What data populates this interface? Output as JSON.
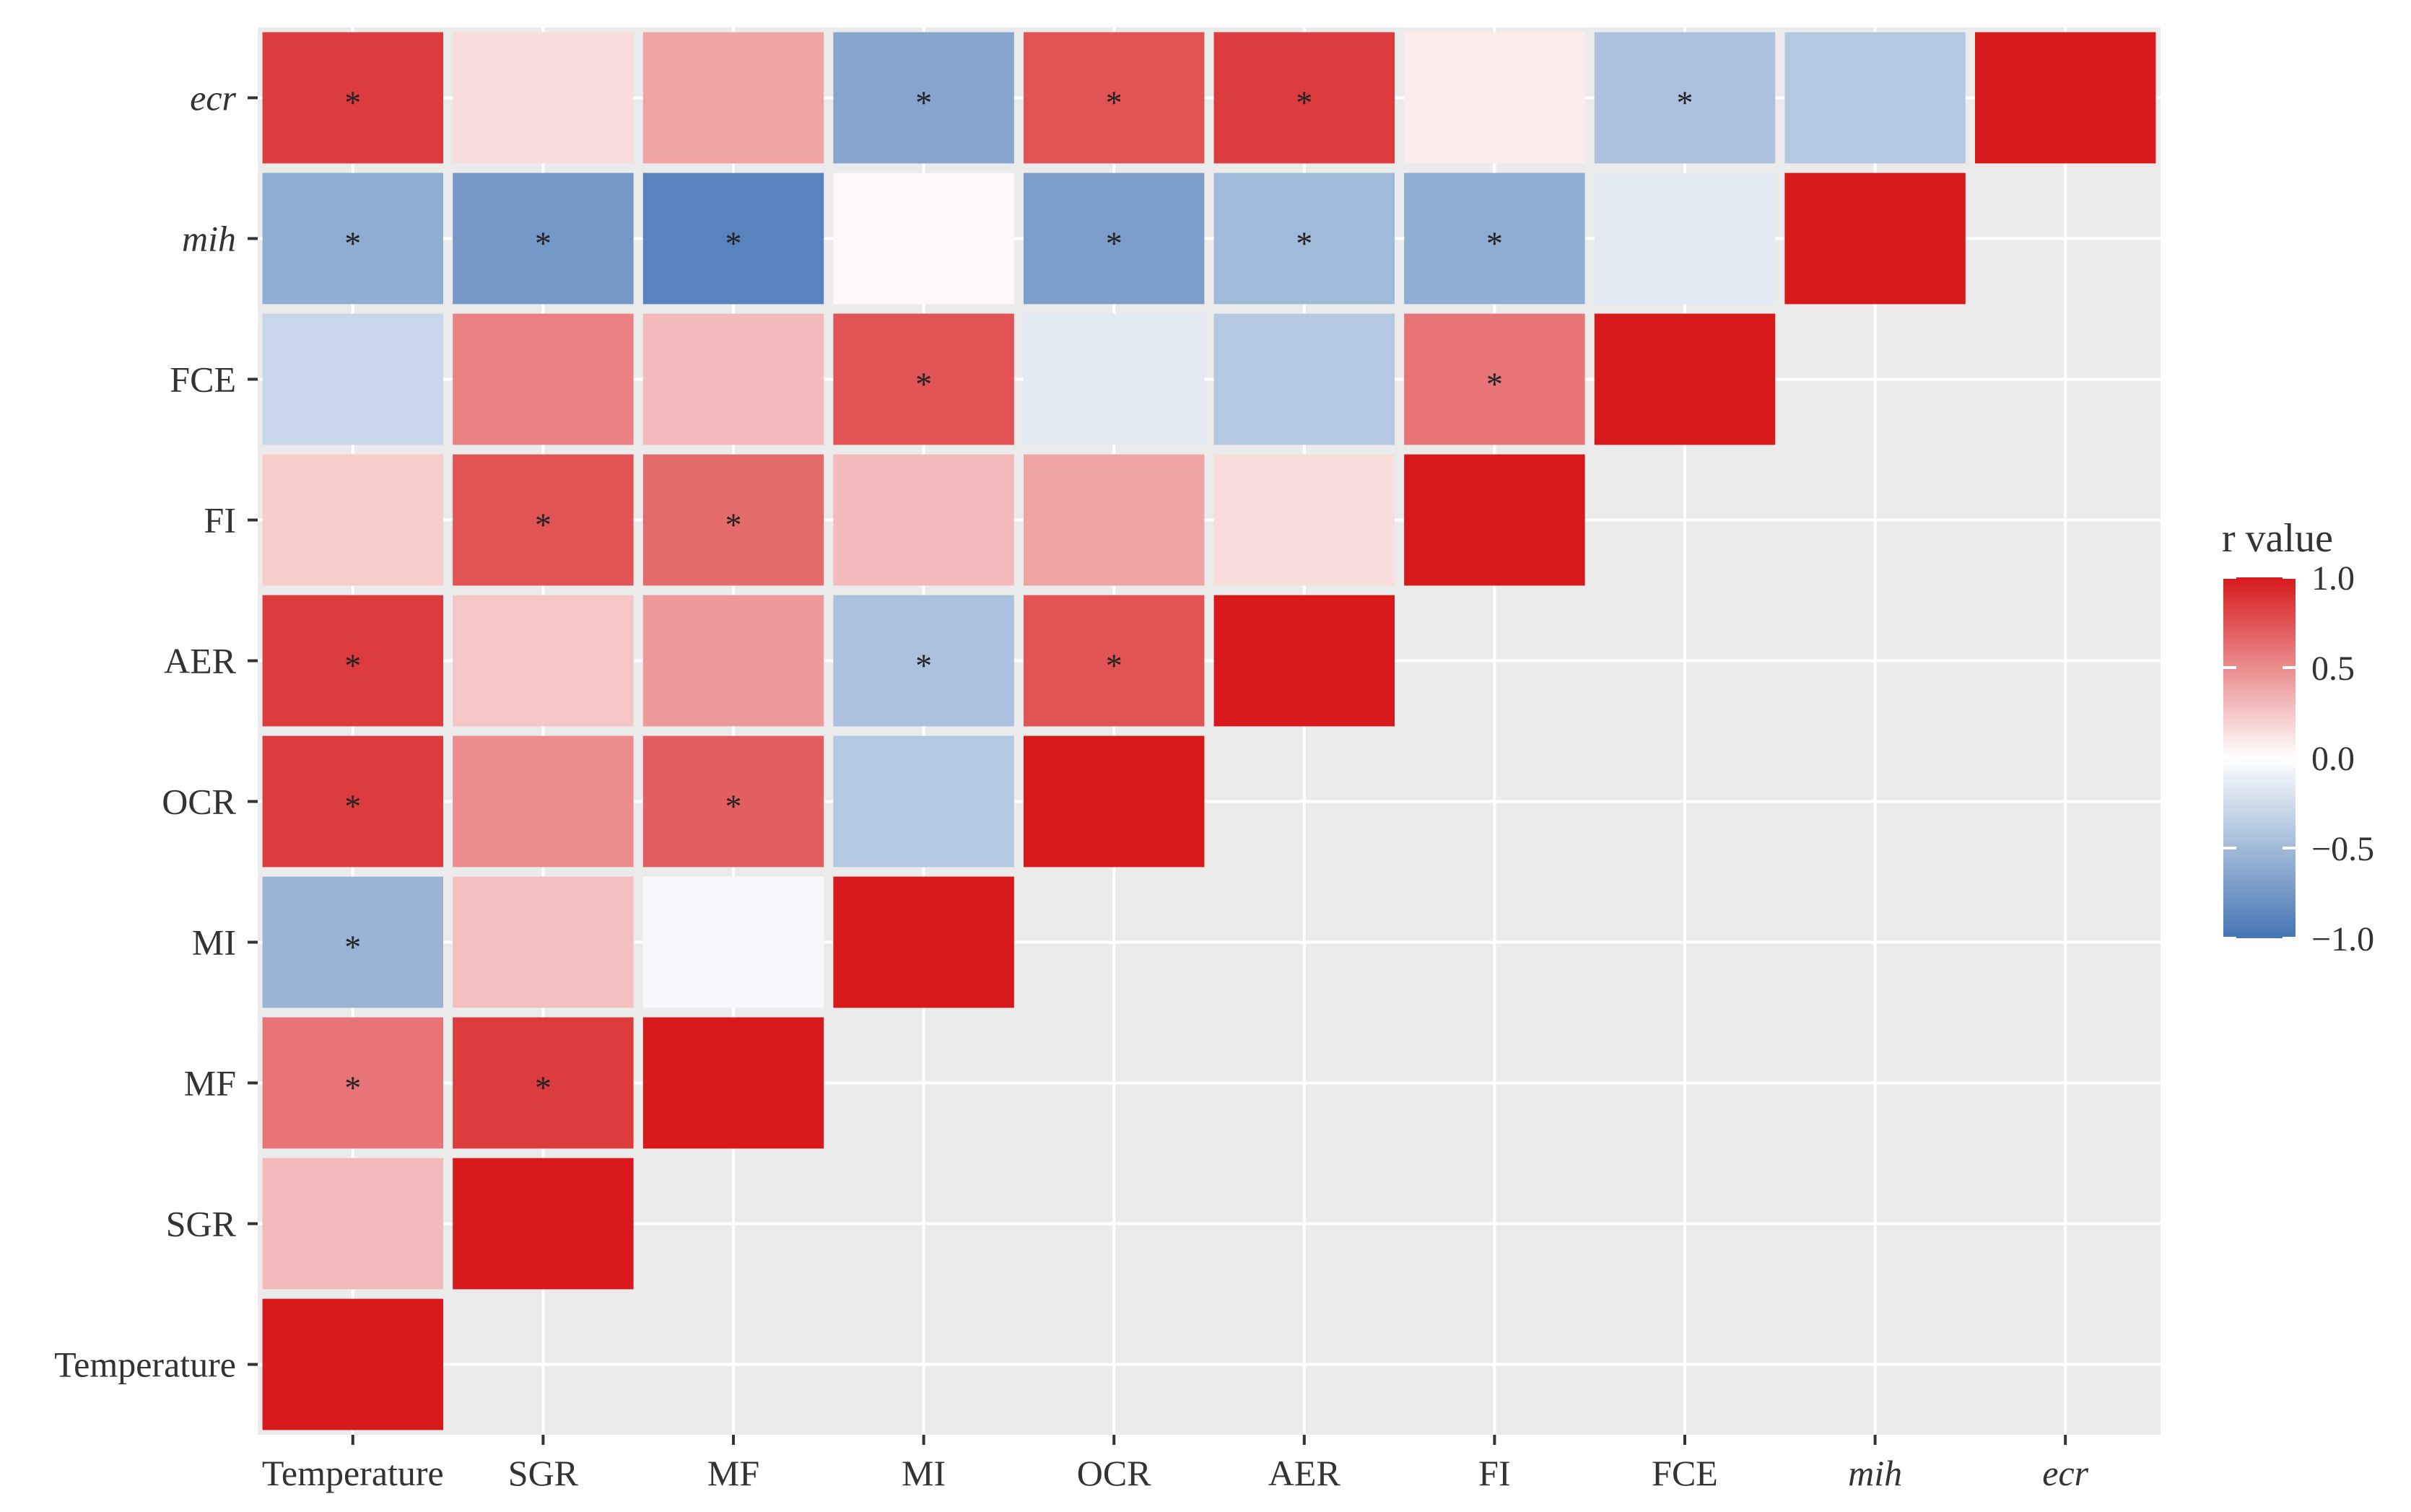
{
  "chart_data": {
    "type": "heatmap",
    "title": "",
    "xlabel": "",
    "ylabel": "",
    "x_categories": [
      "Temperature",
      "SGR",
      "MF",
      "MI",
      "OCR",
      "AER",
      "FI",
      "FCE",
      "mih",
      "ecr"
    ],
    "y_categories": [
      "Temperature",
      "SGR",
      "MF",
      "MI",
      "OCR",
      "AER",
      "FI",
      "FCE",
      "mih",
      "ecr"
    ],
    "italic_categories": [
      "mih",
      "ecr"
    ],
    "cells": [
      {
        "x": "Temperature",
        "y": "Temperature",
        "r": 1.0,
        "sig": false
      },
      {
        "x": "Temperature",
        "y": "SGR",
        "r": 0.3,
        "sig": false
      },
      {
        "x": "Temperature",
        "y": "MF",
        "r": 0.6,
        "sig": true
      },
      {
        "x": "Temperature",
        "y": "MI",
        "r": -0.55,
        "sig": true
      },
      {
        "x": "Temperature",
        "y": "OCR",
        "r": 0.85,
        "sig": true
      },
      {
        "x": "Temperature",
        "y": "AER",
        "r": 0.85,
        "sig": true
      },
      {
        "x": "Temperature",
        "y": "FI",
        "r": 0.22,
        "sig": false
      },
      {
        "x": "Temperature",
        "y": "FCE",
        "r": -0.3,
        "sig": false
      },
      {
        "x": "Temperature",
        "y": "mih",
        "r": -0.6,
        "sig": true
      },
      {
        "x": "Temperature",
        "y": "ecr",
        "r": 0.85,
        "sig": true
      },
      {
        "x": "SGR",
        "y": "SGR",
        "r": 1.0,
        "sig": false
      },
      {
        "x": "SGR",
        "y": "MF",
        "r": 0.85,
        "sig": true
      },
      {
        "x": "SGR",
        "y": "MI",
        "r": 0.28,
        "sig": false
      },
      {
        "x": "SGR",
        "y": "OCR",
        "r": 0.5,
        "sig": false
      },
      {
        "x": "SGR",
        "y": "AER",
        "r": 0.25,
        "sig": false
      },
      {
        "x": "SGR",
        "y": "FI",
        "r": 0.75,
        "sig": true
      },
      {
        "x": "SGR",
        "y": "FCE",
        "r": 0.55,
        "sig": false
      },
      {
        "x": "SGR",
        "y": "mih",
        "r": -0.75,
        "sig": true
      },
      {
        "x": "SGR",
        "y": "ecr",
        "r": 0.15,
        "sig": false
      },
      {
        "x": "MF",
        "y": "MF",
        "r": 1.0,
        "sig": false
      },
      {
        "x": "MF",
        "y": "MI",
        "r": -0.05,
        "sig": false
      },
      {
        "x": "MF",
        "y": "OCR",
        "r": 0.7,
        "sig": true
      },
      {
        "x": "MF",
        "y": "AER",
        "r": 0.45,
        "sig": false
      },
      {
        "x": "MF",
        "y": "FI",
        "r": 0.65,
        "sig": true
      },
      {
        "x": "MF",
        "y": "FCE",
        "r": 0.3,
        "sig": false
      },
      {
        "x": "MF",
        "y": "mih",
        "r": -0.9,
        "sig": true
      },
      {
        "x": "MF",
        "y": "ecr",
        "r": 0.4,
        "sig": false
      },
      {
        "x": "MI",
        "y": "MI",
        "r": 1.0,
        "sig": false
      },
      {
        "x": "MI",
        "y": "OCR",
        "r": -0.4,
        "sig": false
      },
      {
        "x": "MI",
        "y": "AER",
        "r": -0.45,
        "sig": true
      },
      {
        "x": "MI",
        "y": "FI",
        "r": 0.3,
        "sig": false
      },
      {
        "x": "MI",
        "y": "FCE",
        "r": 0.75,
        "sig": true
      },
      {
        "x": "MI",
        "y": "mih",
        "r": 0.03,
        "sig": false
      },
      {
        "x": "MI",
        "y": "ecr",
        "r": -0.65,
        "sig": true
      },
      {
        "x": "OCR",
        "y": "OCR",
        "r": 1.0,
        "sig": false
      },
      {
        "x": "OCR",
        "y": "AER",
        "r": 0.75,
        "sig": true
      },
      {
        "x": "OCR",
        "y": "FI",
        "r": 0.4,
        "sig": false
      },
      {
        "x": "OCR",
        "y": "FCE",
        "r": -0.15,
        "sig": false
      },
      {
        "x": "OCR",
        "y": "mih",
        "r": -0.7,
        "sig": true
      },
      {
        "x": "OCR",
        "y": "ecr",
        "r": 0.75,
        "sig": true
      },
      {
        "x": "AER",
        "y": "AER",
        "r": 1.0,
        "sig": false
      },
      {
        "x": "AER",
        "y": "FI",
        "r": 0.15,
        "sig": false
      },
      {
        "x": "AER",
        "y": "FCE",
        "r": -0.4,
        "sig": false
      },
      {
        "x": "AER",
        "y": "mih",
        "r": -0.5,
        "sig": true
      },
      {
        "x": "AER",
        "y": "ecr",
        "r": 0.85,
        "sig": true
      },
      {
        "x": "FI",
        "y": "FI",
        "r": 1.0,
        "sig": false
      },
      {
        "x": "FI",
        "y": "FCE",
        "r": 0.6,
        "sig": true
      },
      {
        "x": "FI",
        "y": "mih",
        "r": -0.6,
        "sig": true
      },
      {
        "x": "FI",
        "y": "ecr",
        "r": 0.08,
        "sig": false
      },
      {
        "x": "FCE",
        "y": "FCE",
        "r": 1.0,
        "sig": false
      },
      {
        "x": "FCE",
        "y": "mih",
        "r": -0.15,
        "sig": false
      },
      {
        "x": "FCE",
        "y": "ecr",
        "r": -0.45,
        "sig": true
      },
      {
        "x": "mih",
        "y": "mih",
        "r": 1.0,
        "sig": false
      },
      {
        "x": "mih",
        "y": "ecr",
        "r": -0.4,
        "sig": false
      },
      {
        "x": "ecr",
        "y": "ecr",
        "r": 1.0,
        "sig": false
      }
    ],
    "significance_marker": "*",
    "legend": {
      "title": "r value",
      "min": -1.0,
      "max": 1.0,
      "ticks": [
        1.0,
        0.5,
        0.0,
        -0.5,
        -1.0
      ],
      "tick_labels": [
        "1.0",
        "0.5",
        "0.0",
        "−0.5",
        "−1.0"
      ],
      "placement": "right"
    },
    "colors": {
      "low": "#4575b4",
      "mid": "#ffffff",
      "high": "#d7191c",
      "panel_background": "#ebebeb",
      "gridline": "#ffffff",
      "text": "#333333"
    }
  }
}
